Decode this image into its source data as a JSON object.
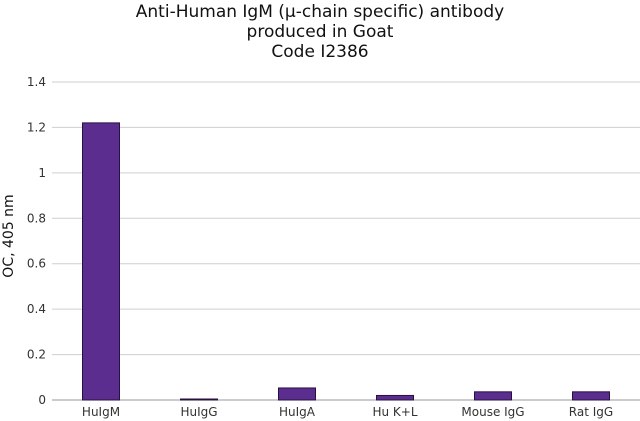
{
  "chart_data": {
    "type": "bar",
    "title_lines": [
      "Anti-Human IgM (μ-chain specific) antibody",
      "produced in Goat",
      "Code I2386"
    ],
    "ylabel": "OC, 405 nm",
    "xlabel": "",
    "categories": [
      "HuIgM",
      "HuIgG",
      "HuIgA",
      "Hu K+L",
      "Mouse IgG",
      "Rat IgG"
    ],
    "values": [
      1.22,
      0.002,
      0.053,
      0.02,
      0.036,
      0.036
    ],
    "ylim": [
      0,
      1.4
    ],
    "yticks": [
      0,
      0.2,
      0.4,
      0.6,
      0.8,
      1,
      1.2,
      1.4
    ],
    "ytick_labels": [
      "0",
      "0.2",
      "0.4",
      "0.6",
      "0.8",
      "1",
      "1.2",
      "1.4"
    ],
    "grid": true,
    "bar_color": "#5b2d8e",
    "bar_edge_color": "#2a1040"
  }
}
